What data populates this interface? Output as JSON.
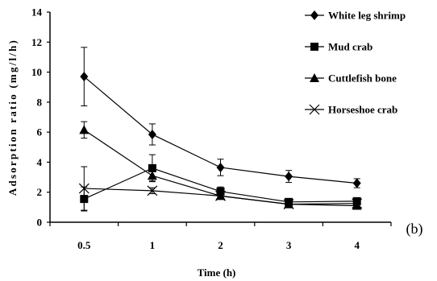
{
  "chart_data": {
    "type": "line",
    "title": "",
    "xlabel": "Time (h)",
    "ylabel": "Adsorption ratio (mg/l/h)",
    "panel_label": "(b)",
    "categories": [
      "0.5",
      "1",
      "2",
      "3",
      "4"
    ],
    "ylim": [
      0,
      14
    ],
    "yticks": [
      "0",
      "2",
      "4",
      "6",
      "8",
      "10",
      "12",
      "14"
    ],
    "grid": false,
    "legend_position": "top-right",
    "series": [
      {
        "name": "White leg shrimp",
        "marker": "diamond",
        "values": [
          9.7,
          5.85,
          3.65,
          3.05,
          2.6
        ],
        "errors": [
          1.95,
          0.7,
          0.55,
          0.4,
          0.3
        ]
      },
      {
        "name": "Mud crab",
        "marker": "square",
        "values": [
          1.55,
          3.6,
          2.05,
          1.35,
          1.4
        ],
        "errors": [
          0.8,
          0.9,
          0.3,
          0.2,
          0.2
        ]
      },
      {
        "name": "Cuttlefish bone",
        "marker": "triangle",
        "values": [
          6.15,
          3.1,
          1.75,
          1.2,
          1.1
        ],
        "errors": [
          0.55,
          0.35,
          0.2,
          0.15,
          0.15
        ]
      },
      {
        "name": "Horseshoe crab",
        "marker": "x",
        "values": [
          2.25,
          2.1,
          1.75,
          1.2,
          1.25
        ],
        "errors": [
          1.45,
          0.2,
          0.15,
          0.1,
          0.1
        ]
      }
    ]
  }
}
